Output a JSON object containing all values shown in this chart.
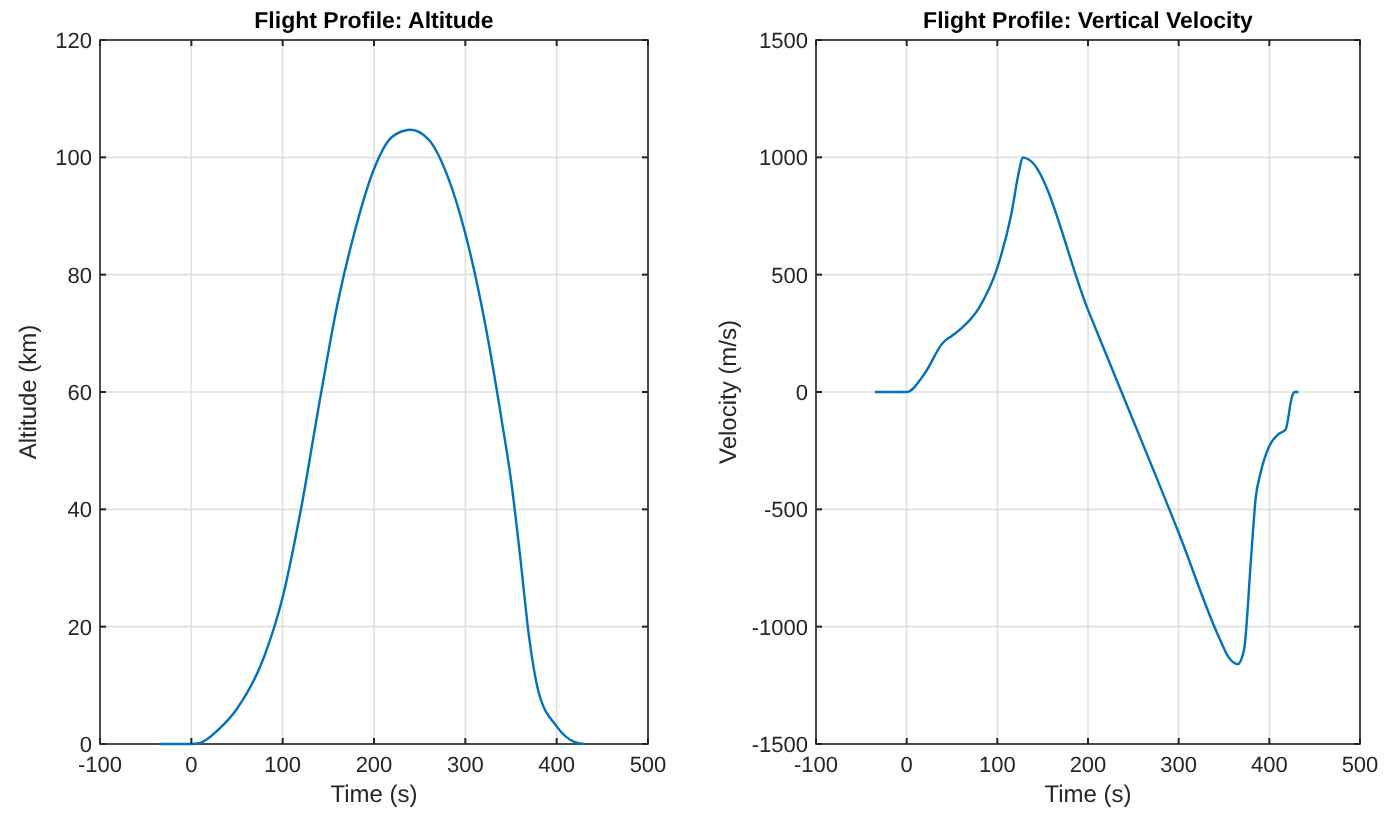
{
  "chart_data": [
    {
      "type": "line",
      "title": "Flight Profile: Altitude",
      "xlabel": "Time (s)",
      "ylabel": "Altitude (km)",
      "xlim": [
        -100,
        500
      ],
      "xticks": [
        -100,
        0,
        100,
        200,
        300,
        400,
        500
      ],
      "ylim": [
        0,
        120
      ],
      "yticks": [
        0,
        20,
        40,
        60,
        80,
        100,
        120
      ],
      "grid": true,
      "series": [
        {
          "color": "#0072bd",
          "x": [
            -35,
            0,
            10,
            30,
            50,
            80,
            100,
            120,
            140,
            160,
            180,
            200,
            220,
            240,
            260,
            280,
            300,
            320,
            340,
            350,
            360,
            370,
            380,
            400,
            420,
            430
          ],
          "values": [
            0,
            0,
            0.2,
            2.5,
            6,
            15,
            25,
            40,
            58,
            75,
            88,
            98,
            103.5,
            104.7,
            103,
            97,
            87,
            73,
            55,
            45,
            32,
            18,
            9,
            3,
            0.3,
            0
          ]
        }
      ]
    },
    {
      "type": "line",
      "title": "Flight Profile: Vertical Velocity",
      "xlabel": "Time (s)",
      "ylabel": "Velocity (m/s)",
      "xlim": [
        -100,
        500
      ],
      "xticks": [
        -100,
        0,
        100,
        200,
        300,
        400,
        500
      ],
      "ylim": [
        -1500,
        1500
      ],
      "yticks": [
        -1500,
        -1000,
        -500,
        0,
        500,
        1000,
        1500
      ],
      "grid": true,
      "series": [
        {
          "color": "#0072bd",
          "x": [
            -35,
            0,
            20,
            40,
            50,
            60,
            80,
            100,
            115,
            125,
            128,
            135,
            200,
            237,
            300,
            345,
            355,
            365,
            372,
            380,
            385,
            390,
            400,
            410,
            418,
            425,
            428,
            432
          ],
          "values": [
            0,
            0,
            80,
            210,
            240,
            270,
            360,
            530,
            750,
            960,
            1000,
            990,
            350,
            0,
            -600,
            -1050,
            -1130,
            -1160,
            -1100,
            -700,
            -450,
            -350,
            -230,
            -180,
            -160,
            -20,
            0,
            0
          ]
        }
      ]
    }
  ]
}
